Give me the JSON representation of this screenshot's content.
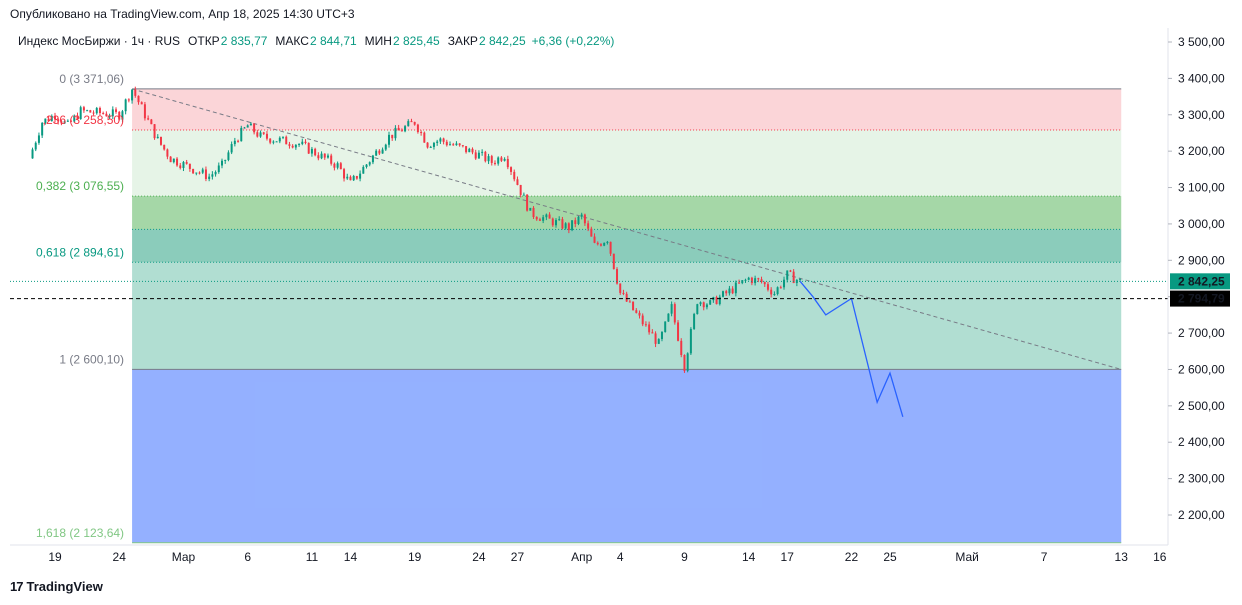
{
  "header": {
    "published": "Опубликовано на TradingView.com, Апр 18, 2025 14:30 UTC+3"
  },
  "legend": {
    "symbol": "Индекс МосБиржи · 1ч · RUS",
    "open_label": "ОТКР",
    "open_value": "2 835,77",
    "high_label": "МАКС",
    "high_value": "2 844,71",
    "low_label": "МИН",
    "low_value": "2 825,45",
    "close_label": "ЗАКР",
    "close_value": "2 842,25",
    "change": "+6,36 (+0,22%)"
  },
  "footer": {
    "brand": "TradingView",
    "logo": "17"
  },
  "colors": {
    "up": "#089981",
    "down": "#f23645",
    "projection": "#2962ff",
    "price_tag": "#089981",
    "level_tag": "#000000"
  },
  "chart_data": {
    "type": "candlestick",
    "title": "",
    "y_axis": {
      "min": 2150,
      "max": 3520,
      "side": "right",
      "ticks": [
        3500,
        3400,
        3300,
        3200,
        3100,
        3000,
        2900,
        2800,
        2700,
        2600,
        2500,
        2400,
        2300,
        2200
      ],
      "tick_labels": [
        "3 500,00",
        "3 400,00",
        "3 300,00",
        "3 200,00",
        "3 100,00",
        "3 000,00",
        "2 900,00",
        "2 800,00",
        "2 700,00",
        "2 600,00",
        "2 500,00",
        "2 400,00",
        "2 300,00",
        "2 200,00"
      ]
    },
    "x_axis": {
      "ticks": [
        {
          "date": "2025-02-19",
          "label": "19"
        },
        {
          "date": "2025-02-24",
          "label": "24"
        },
        {
          "date": "2025-03-01",
          "label": "Мар"
        },
        {
          "date": "2025-03-06",
          "label": "6"
        },
        {
          "date": "2025-03-11",
          "label": "11"
        },
        {
          "date": "2025-03-14",
          "label": "14"
        },
        {
          "date": "2025-03-19",
          "label": "19"
        },
        {
          "date": "2025-03-24",
          "label": "24"
        },
        {
          "date": "2025-03-27",
          "label": "27"
        },
        {
          "date": "2025-04-01",
          "label": "Апр"
        },
        {
          "date": "2025-04-04",
          "label": "4"
        },
        {
          "date": "2025-04-09",
          "label": "9"
        },
        {
          "date": "2025-04-14",
          "label": "14"
        },
        {
          "date": "2025-04-17",
          "label": "17"
        },
        {
          "date": "2025-04-22",
          "label": "22"
        },
        {
          "date": "2025-04-25",
          "label": "25"
        },
        {
          "date": "2025-05-01",
          "label": "Май"
        },
        {
          "date": "2025-05-07",
          "label": "7"
        },
        {
          "date": "2025-05-13",
          "label": "13"
        },
        {
          "date": "2025-05-16",
          "label": "16"
        }
      ]
    },
    "price_path": [
      [
        "2025-02-17",
        3180
      ],
      [
        "2025-02-18",
        3280
      ],
      [
        "2025-02-19",
        3300
      ],
      [
        "2025-02-20",
        3270
      ],
      [
        "2025-02-21",
        3310
      ],
      [
        "2025-02-24",
        3300
      ],
      [
        "2025-02-25",
        3371
      ],
      [
        "2025-02-26",
        3300
      ],
      [
        "2025-02-27",
        3230
      ],
      [
        "2025-02-28",
        3180
      ],
      [
        "2025-03-03",
        3130
      ],
      [
        "2025-03-04",
        3160
      ],
      [
        "2025-03-05",
        3230
      ],
      [
        "2025-03-06",
        3270
      ],
      [
        "2025-03-07",
        3240
      ],
      [
        "2025-03-10",
        3220
      ],
      [
        "2025-03-11",
        3200
      ],
      [
        "2025-03-12",
        3180
      ],
      [
        "2025-03-13",
        3160
      ],
      [
        "2025-03-14",
        3110
      ],
      [
        "2025-03-17",
        3240
      ],
      [
        "2025-03-18",
        3260
      ],
      [
        "2025-03-19",
        3280
      ],
      [
        "2025-03-20",
        3220
      ],
      [
        "2025-03-21",
        3230
      ],
      [
        "2025-03-24",
        3190
      ],
      [
        "2025-03-25",
        3170
      ],
      [
        "2025-03-26",
        3190
      ],
      [
        "2025-03-27",
        3110
      ],
      [
        "2025-03-28",
        3030
      ],
      [
        "2025-03-31",
        2990
      ],
      [
        "2025-04-01",
        3020
      ],
      [
        "2025-04-02",
        2940
      ],
      [
        "2025-04-03",
        2960
      ],
      [
        "2025-04-04",
        2810
      ],
      [
        "2025-04-07",
        2670
      ],
      [
        "2025-04-08",
        2770
      ],
      [
        "2025-04-09",
        2610
      ],
      [
        "2025-04-10",
        2790
      ],
      [
        "2025-04-11",
        2780
      ],
      [
        "2025-04-14",
        2850
      ],
      [
        "2025-04-15",
        2840
      ],
      [
        "2025-04-16",
        2810
      ],
      [
        "2025-04-17",
        2860
      ],
      [
        "2025-04-18",
        2842.25
      ]
    ],
    "projection": [
      [
        "2025-04-19",
        2800
      ],
      [
        "2025-04-20",
        2750
      ],
      [
        "2025-04-22",
        2795
      ],
      [
        "2025-04-24",
        2510
      ],
      [
        "2025-04-25",
        2590
      ],
      [
        "2025-04-26",
        2470
      ]
    ],
    "trendline": {
      "start": [
        "2025-02-25",
        3371
      ],
      "end": [
        "2025-05-13",
        2600
      ]
    },
    "fibonacci": {
      "start_date": "2025-02-25",
      "end_date": "2025-05-13",
      "levels": [
        {
          "ratio": 0,
          "price": 3371.06,
          "label": "0 (3 371,06)",
          "color": "#787b86",
          "fill": "#f7a1a8"
        },
        {
          "ratio": 0.236,
          "price": 3258,
          "label": ",236 (3 258,50)",
          "color": "#f23645",
          "fill": "#c8e6c9"
        },
        {
          "ratio": 0.382,
          "price": 3076.55,
          "label": "0,382 (3 076,55)",
          "color": "#4caf50",
          "fill": "#4caf50"
        },
        {
          "ratio": 0.5,
          "price": 2985,
          "label": "",
          "color": "#089981",
          "fill": "#2ba383"
        },
        {
          "ratio": 0.618,
          "price": 2894.61,
          "label": "0,618 (2 894,61)",
          "color": "#089981",
          "fill": "#52b59c"
        },
        {
          "ratio": 1,
          "price": 2600.1,
          "label": "1 (2 600,10)",
          "color": "#787b86",
          "fill": "#2962ff"
        },
        {
          "ratio": 1.618,
          "price": 2123.64,
          "label": "1,618 (2 123,64)",
          "color": "#81c784",
          "fill": ""
        }
      ]
    },
    "last_price": {
      "value": 2842.25,
      "label": "2 842,25"
    },
    "horizontal_level": {
      "value": 2794.79,
      "label": "2 794,79"
    }
  }
}
